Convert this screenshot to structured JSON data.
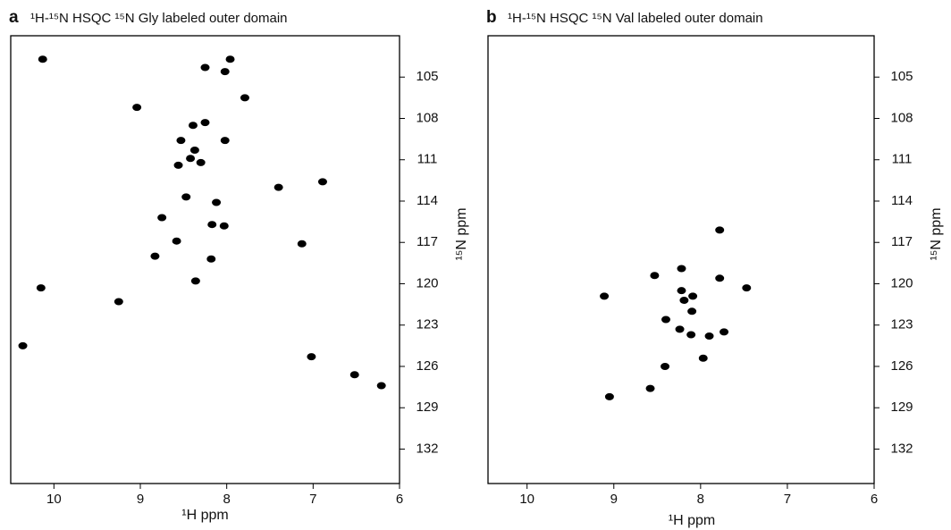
{
  "chart_data": [
    {
      "type": "scatter",
      "label": "a",
      "title": "¹H-¹⁵N HSQC ¹⁵N Gly labeled outer domain",
      "x_label": "¹H ppm",
      "y_label": "¹⁵N ppm",
      "color": "#000000",
      "xlim": [
        10.5,
        6
      ],
      "ylim": [
        102,
        134.5
      ],
      "xticks": [
        10,
        9,
        8,
        7,
        6
      ],
      "yticks": [
        105,
        108,
        111,
        114,
        117,
        120,
        123,
        126,
        129,
        132
      ],
      "x": [
        8.25,
        7.96,
        8.02,
        7.79,
        9.04,
        8.25,
        8.39,
        8.53,
        8.02,
        8.37,
        8.42,
        8.3,
        8.56,
        7.4,
        8.47,
        8.12,
        8.75,
        8.17,
        8.03,
        8.58,
        8.18,
        8.83,
        8.36,
        9.25,
        10.13,
        10.15,
        10.36,
        6.89,
        7.13,
        6.21,
        6.52,
        7.02
      ],
      "values": [
        104.3,
        103.7,
        104.6,
        106.5,
        107.2,
        108.3,
        108.5,
        109.6,
        109.6,
        110.3,
        110.9,
        111.2,
        111.4,
        113.0,
        113.7,
        114.1,
        115.2,
        115.7,
        115.8,
        116.9,
        118.2,
        118.0,
        119.8,
        121.3,
        103.7,
        120.3,
        124.5,
        112.6,
        117.1,
        127.4,
        126.6,
        125.3
      ]
    },
    {
      "type": "scatter",
      "label": "b",
      "title": "¹H-¹⁵N HSQC ¹⁵N Val labeled outer domain",
      "x_label": "¹H ppm",
      "y_label": "¹⁵N ppm",
      "color": "#000000",
      "xlim": [
        10.45,
        6
      ],
      "ylim": [
        102,
        134.5
      ],
      "xticks": [
        10,
        9,
        8,
        7,
        6
      ],
      "yticks": [
        105,
        108,
        111,
        114,
        117,
        120,
        123,
        126,
        129,
        132
      ],
      "x": [
        9.11,
        9.05,
        8.58,
        8.53,
        8.22,
        7.78,
        7.47,
        7.78,
        8.22,
        8.09,
        8.19,
        8.1,
        8.4,
        8.24,
        8.11,
        7.9,
        7.73,
        7.97,
        8.41
      ],
      "values": [
        120.9,
        128.2,
        127.6,
        119.4,
        118.9,
        119.6,
        120.3,
        116.1,
        120.5,
        120.9,
        121.2,
        122.0,
        122.6,
        123.3,
        123.7,
        123.8,
        123.5,
        125.4,
        126.0
      ]
    }
  ]
}
